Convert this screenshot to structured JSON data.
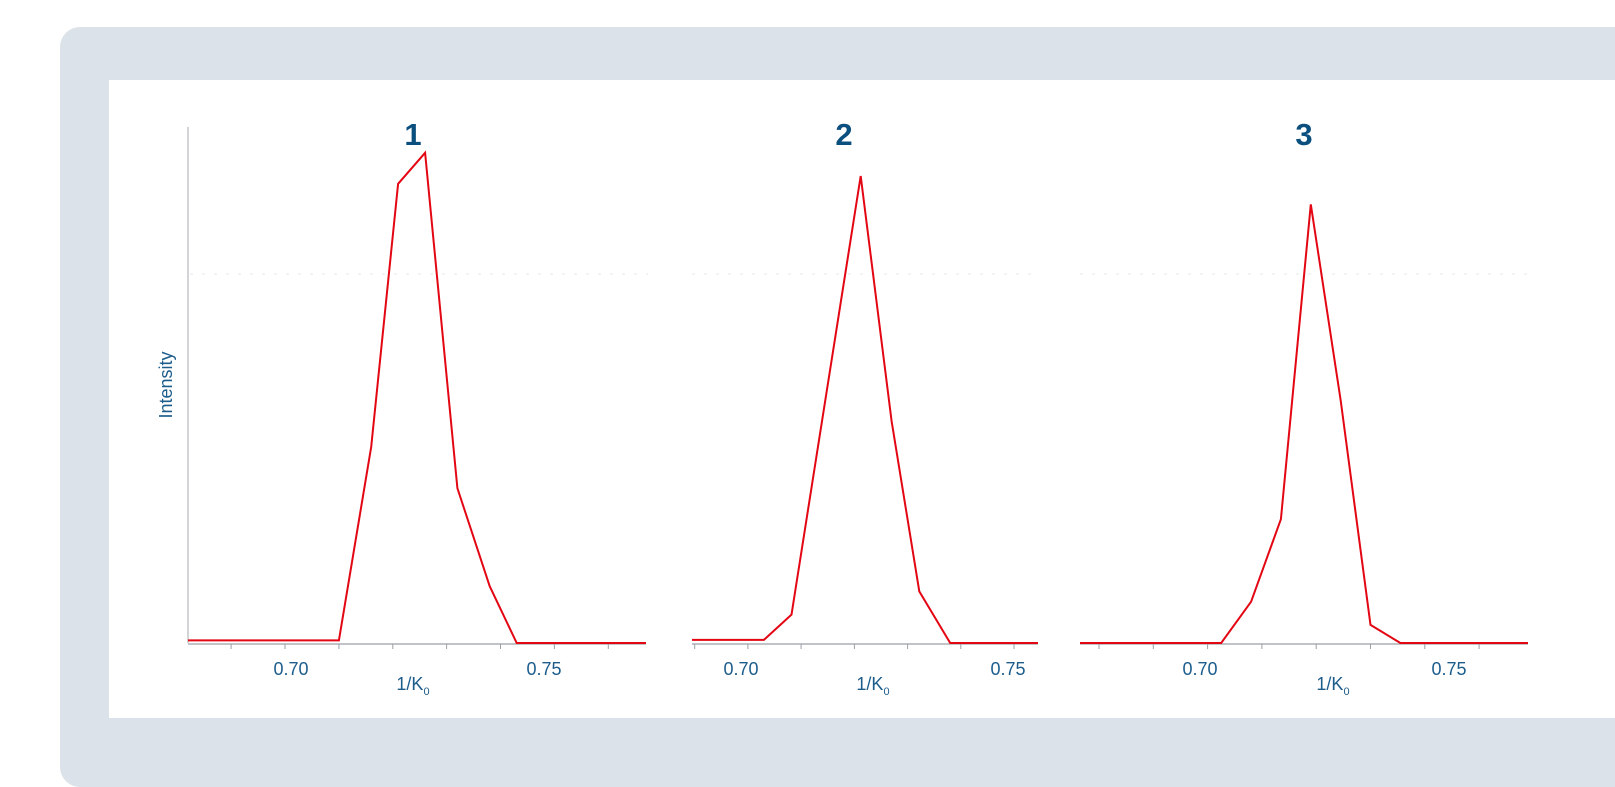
{
  "colors": {
    "frame": "#dbe2e9",
    "panel": "#ffffff",
    "series": "#e30613",
    "text": "#1c5d8c",
    "title": "#0b4f7e",
    "axis": "#9aa0a6"
  },
  "chart_data": [
    {
      "type": "line",
      "title": "1",
      "xlabel": "1/K",
      "xlabel_subscript": "0",
      "ylabel": "Intensity",
      "xlim": [
        0.672,
        0.757
      ],
      "ylim": [
        0,
        100
      ],
      "xticks": [
        {
          "value": 0.7,
          "label": "0.70"
        },
        {
          "value": 0.75,
          "label": "0.75"
        }
      ],
      "series": [
        {
          "x": [
            0.672,
            0.7,
            0.706,
            0.711,
            0.716,
            0.722,
            0.728,
            0.733,
            0.757
          ],
          "y": [
            0.5,
            0.5,
            38,
            89,
            95,
            30,
            11,
            0,
            0
          ]
        }
      ]
    },
    {
      "type": "line",
      "title": "2",
      "xlabel": "1/K",
      "xlabel_subscript": "0",
      "ylim": [
        0,
        100
      ],
      "xlim": [
        0.6895,
        0.7545
      ],
      "xticks": [
        {
          "value": 0.7,
          "label": "0.70"
        },
        {
          "value": 0.75,
          "label": "0.75"
        }
      ],
      "series": [
        {
          "x": [
            0.6895,
            0.703,
            0.7082,
            0.715,
            0.7212,
            0.727,
            0.7322,
            0.738,
            0.7545
          ],
          "y": [
            0.6,
            0.6,
            5.5,
            50,
            90.5,
            43,
            10,
            0,
            0
          ]
        }
      ]
    },
    {
      "type": "line",
      "title": "3",
      "xlabel": "1/K",
      "xlabel_subscript": "0",
      "ylim": [
        0,
        100
      ],
      "xlim": [
        0.6765,
        0.759
      ],
      "xticks": [
        {
          "value": 0.7,
          "label": "0.70"
        },
        {
          "value": 0.75,
          "label": "0.75"
        }
      ],
      "series": [
        {
          "x": [
            0.6765,
            0.7025,
            0.708,
            0.7135,
            0.719,
            0.7245,
            0.73,
            0.7355,
            0.759
          ],
          "y": [
            0,
            0,
            8,
            24,
            85,
            47,
            3.5,
            0,
            0
          ]
        }
      ]
    }
  ]
}
